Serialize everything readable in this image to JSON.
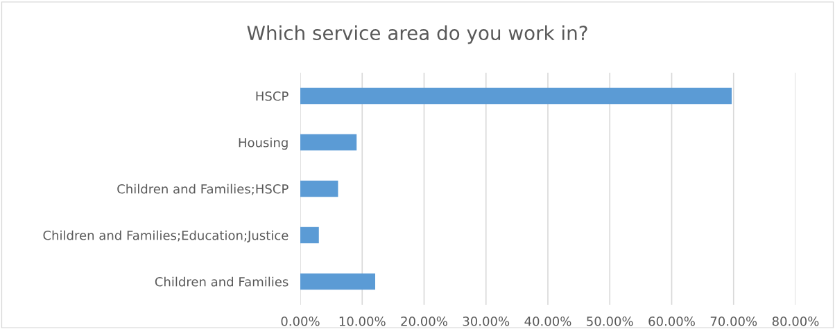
{
  "chart_data": {
    "type": "bar",
    "orientation": "horizontal",
    "title": "Which service area do you work in?",
    "categories": [
      "HSCP",
      "Housing",
      "Children and Families;HSCP",
      "Children and Families;Education;Justice",
      "Children and Families"
    ],
    "values": [
      69.7,
      9.1,
      6.1,
      3.0,
      12.1
    ],
    "color": "#5b9bd5",
    "xlim": [
      0,
      80
    ],
    "xticks": [
      {
        "value": 0,
        "label": "0.00%"
      },
      {
        "value": 10,
        "label": "10.00%"
      },
      {
        "value": 20,
        "label": "20.00%"
      },
      {
        "value": 30,
        "label": "30.00%"
      },
      {
        "value": 40,
        "label": "40.00%"
      },
      {
        "value": 50,
        "label": "50.00%"
      },
      {
        "value": 60,
        "label": "60.00%"
      },
      {
        "value": 70,
        "label": "70.00%"
      },
      {
        "value": 80,
        "label": "80.00%"
      }
    ],
    "grid": "x",
    "legend": false
  }
}
